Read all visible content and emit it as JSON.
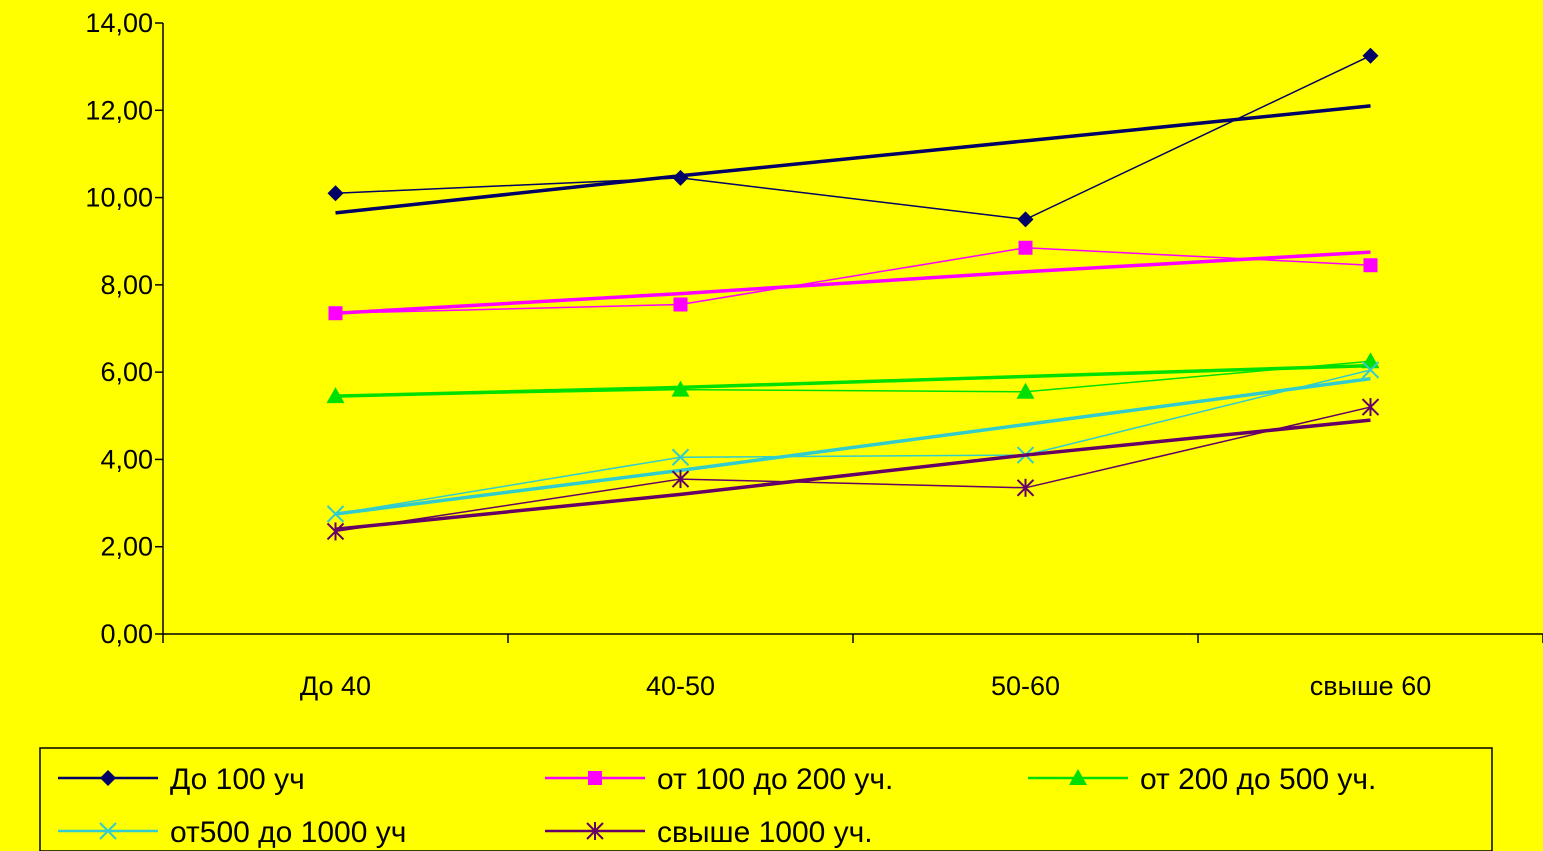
{
  "chart_data": {
    "type": "line",
    "categories": [
      "До 40",
      "40-50",
      "50-60",
      "свыше 60"
    ],
    "ylim": [
      0,
      14
    ],
    "yticks": [
      0,
      2,
      4,
      6,
      8,
      10,
      12,
      14
    ],
    "ytick_labels": [
      "0,00",
      "2,00",
      "4,00",
      "6,00",
      "8,00",
      "10,00",
      "12,00",
      "14,00"
    ],
    "grid": false,
    "legend_position": "bottom",
    "series": [
      {
        "name": "До 100 уч",
        "values": [
          10.1,
          10.45,
          9.5,
          13.25
        ],
        "trend": [
          9.65,
          10.5,
          11.3,
          12.1
        ],
        "color": "#000066",
        "marker": "diamond"
      },
      {
        "name": "от 100 до 200 уч.",
        "values": [
          7.35,
          7.55,
          8.85,
          8.45
        ],
        "trend": [
          7.35,
          7.8,
          8.3,
          8.75
        ],
        "color": "#FF00FF",
        "marker": "square"
      },
      {
        "name": "от 200 до 500 уч.",
        "values": [
          5.45,
          5.6,
          5.55,
          6.25
        ],
        "trend": [
          5.45,
          5.65,
          5.9,
          6.15
        ],
        "color": "#00E000",
        "marker": "triangle"
      },
      {
        "name": "от500 до 1000 уч",
        "values": [
          2.75,
          4.05,
          4.1,
          6.05
        ],
        "trend": [
          2.75,
          3.75,
          4.8,
          5.85
        ],
        "color": "#33CCCC",
        "marker": "x"
      },
      {
        "name": "свыше 1000 уч.",
        "values": [
          2.35,
          3.55,
          3.35,
          5.2
        ],
        "trend": [
          2.4,
          3.2,
          4.1,
          4.9
        ],
        "color": "#660066",
        "marker": "star"
      }
    ]
  }
}
